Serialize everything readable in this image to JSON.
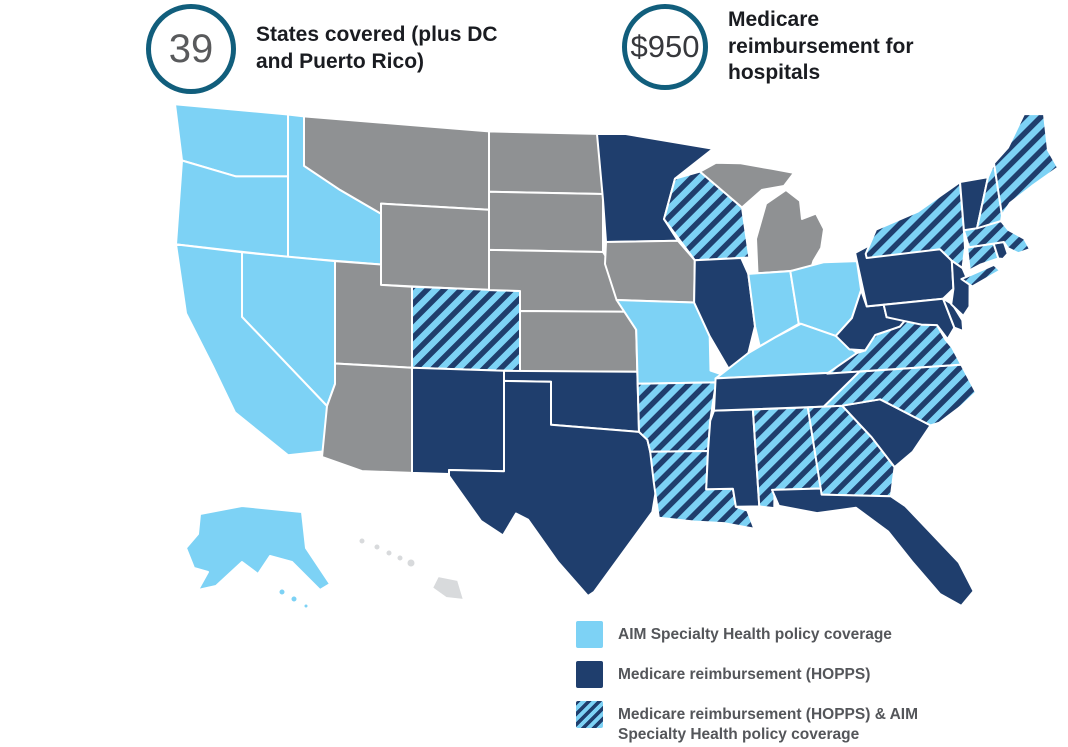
{
  "header": {
    "stats": [
      {
        "value": "39",
        "label": "States covered (plus DC and Puerto Rico)",
        "value_color": "#595a5c"
      },
      {
        "value": "$950",
        "label": "Medicare reimbursement for hospitals",
        "value_color": "#37383c"
      }
    ]
  },
  "legend": {
    "items": [
      {
        "key": "aim",
        "label": "AIM Specialty Health policy coverage"
      },
      {
        "key": "hopps",
        "label": "Medicare reimbursement (HOPPS)"
      },
      {
        "key": "both",
        "label": "Medicare reimbursement (HOPPS) & AIM Specialty Health policy coverage"
      }
    ]
  },
  "colors": {
    "aim": "#7dd2f5",
    "hopps": "#1f3e6d",
    "none": "#8f9193",
    "excluded": "#d8dadc",
    "stat_circle": "#115e7c",
    "heading_text": "#1a1c21",
    "legend_text": "#54565a",
    "state_border": "#ffffff"
  },
  "map": {
    "states": {
      "WA": "aim",
      "OR": "aim",
      "CA": "aim",
      "NV": "aim",
      "ID": "aim",
      "MO": "aim",
      "IN": "aim",
      "OH": "aim",
      "KY": "aim",
      "AK": "aim",
      "MN": "hopps",
      "IL": "hopps",
      "NM": "hopps",
      "TX": "hopps",
      "OK": "hopps",
      "TN": "hopps",
      "MS": "hopps",
      "SC": "hopps",
      "FL": "hopps",
      "WV": "hopps",
      "PA": "hopps",
      "NJ": "hopps",
      "MD": "hopps",
      "DE": "hopps",
      "VT": "hopps",
      "RI": "hopps",
      "CO": "both",
      "WI": "both",
      "AR": "both",
      "LA": "both",
      "AL": "both",
      "GA": "both",
      "NC": "both",
      "VA": "both",
      "NY": "both",
      "ME": "both",
      "NH": "both",
      "MA": "both",
      "CT": "both",
      "MT": "none",
      "WY": "none",
      "UT": "none",
      "AZ": "none",
      "ND": "none",
      "SD": "none",
      "NE": "none",
      "KS": "none",
      "IA": "none",
      "MI": "none",
      "HI": "excluded"
    }
  }
}
